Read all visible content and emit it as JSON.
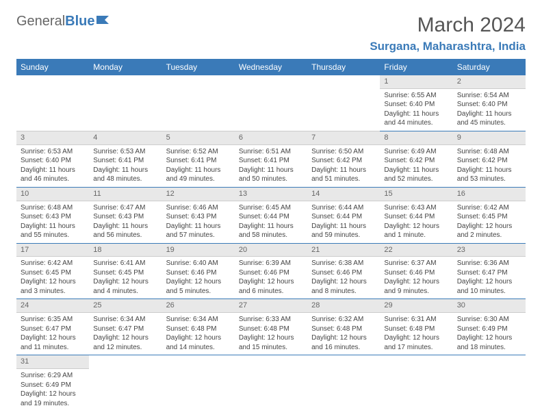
{
  "logo": {
    "general": "General",
    "blue": "Blue"
  },
  "title": "March 2024",
  "location": "Surgana, Maharashtra, India",
  "colors": {
    "header_bg": "#3a7ab8",
    "header_text": "#ffffff",
    "daynum_bg": "#e8e8e8",
    "row_border": "#3a7ab8",
    "text": "#444444"
  },
  "weekdays": [
    "Sunday",
    "Monday",
    "Tuesday",
    "Wednesday",
    "Thursday",
    "Friday",
    "Saturday"
  ],
  "weeks": [
    [
      {
        "blank": true
      },
      {
        "blank": true
      },
      {
        "blank": true
      },
      {
        "blank": true
      },
      {
        "blank": true
      },
      {
        "n": "1",
        "sunrise": "6:55 AM",
        "sunset": "6:40 PM",
        "daylight": "11 hours and 44 minutes."
      },
      {
        "n": "2",
        "sunrise": "6:54 AM",
        "sunset": "6:40 PM",
        "daylight": "11 hours and 45 minutes."
      }
    ],
    [
      {
        "n": "3",
        "sunrise": "6:53 AM",
        "sunset": "6:40 PM",
        "daylight": "11 hours and 46 minutes."
      },
      {
        "n": "4",
        "sunrise": "6:53 AM",
        "sunset": "6:41 PM",
        "daylight": "11 hours and 48 minutes."
      },
      {
        "n": "5",
        "sunrise": "6:52 AM",
        "sunset": "6:41 PM",
        "daylight": "11 hours and 49 minutes."
      },
      {
        "n": "6",
        "sunrise": "6:51 AM",
        "sunset": "6:41 PM",
        "daylight": "11 hours and 50 minutes."
      },
      {
        "n": "7",
        "sunrise": "6:50 AM",
        "sunset": "6:42 PM",
        "daylight": "11 hours and 51 minutes."
      },
      {
        "n": "8",
        "sunrise": "6:49 AM",
        "sunset": "6:42 PM",
        "daylight": "11 hours and 52 minutes."
      },
      {
        "n": "9",
        "sunrise": "6:48 AM",
        "sunset": "6:42 PM",
        "daylight": "11 hours and 53 minutes."
      }
    ],
    [
      {
        "n": "10",
        "sunrise": "6:48 AM",
        "sunset": "6:43 PM",
        "daylight": "11 hours and 55 minutes."
      },
      {
        "n": "11",
        "sunrise": "6:47 AM",
        "sunset": "6:43 PM",
        "daylight": "11 hours and 56 minutes."
      },
      {
        "n": "12",
        "sunrise": "6:46 AM",
        "sunset": "6:43 PM",
        "daylight": "11 hours and 57 minutes."
      },
      {
        "n": "13",
        "sunrise": "6:45 AM",
        "sunset": "6:44 PM",
        "daylight": "11 hours and 58 minutes."
      },
      {
        "n": "14",
        "sunrise": "6:44 AM",
        "sunset": "6:44 PM",
        "daylight": "11 hours and 59 minutes."
      },
      {
        "n": "15",
        "sunrise": "6:43 AM",
        "sunset": "6:44 PM",
        "daylight": "12 hours and 1 minute."
      },
      {
        "n": "16",
        "sunrise": "6:42 AM",
        "sunset": "6:45 PM",
        "daylight": "12 hours and 2 minutes."
      }
    ],
    [
      {
        "n": "17",
        "sunrise": "6:42 AM",
        "sunset": "6:45 PM",
        "daylight": "12 hours and 3 minutes."
      },
      {
        "n": "18",
        "sunrise": "6:41 AM",
        "sunset": "6:45 PM",
        "daylight": "12 hours and 4 minutes."
      },
      {
        "n": "19",
        "sunrise": "6:40 AM",
        "sunset": "6:46 PM",
        "daylight": "12 hours and 5 minutes."
      },
      {
        "n": "20",
        "sunrise": "6:39 AM",
        "sunset": "6:46 PM",
        "daylight": "12 hours and 6 minutes."
      },
      {
        "n": "21",
        "sunrise": "6:38 AM",
        "sunset": "6:46 PM",
        "daylight": "12 hours and 8 minutes."
      },
      {
        "n": "22",
        "sunrise": "6:37 AM",
        "sunset": "6:46 PM",
        "daylight": "12 hours and 9 minutes."
      },
      {
        "n": "23",
        "sunrise": "6:36 AM",
        "sunset": "6:47 PM",
        "daylight": "12 hours and 10 minutes."
      }
    ],
    [
      {
        "n": "24",
        "sunrise": "6:35 AM",
        "sunset": "6:47 PM",
        "daylight": "12 hours and 11 minutes."
      },
      {
        "n": "25",
        "sunrise": "6:34 AM",
        "sunset": "6:47 PM",
        "daylight": "12 hours and 12 minutes."
      },
      {
        "n": "26",
        "sunrise": "6:34 AM",
        "sunset": "6:48 PM",
        "daylight": "12 hours and 14 minutes."
      },
      {
        "n": "27",
        "sunrise": "6:33 AM",
        "sunset": "6:48 PM",
        "daylight": "12 hours and 15 minutes."
      },
      {
        "n": "28",
        "sunrise": "6:32 AM",
        "sunset": "6:48 PM",
        "daylight": "12 hours and 16 minutes."
      },
      {
        "n": "29",
        "sunrise": "6:31 AM",
        "sunset": "6:48 PM",
        "daylight": "12 hours and 17 minutes."
      },
      {
        "n": "30",
        "sunrise": "6:30 AM",
        "sunset": "6:49 PM",
        "daylight": "12 hours and 18 minutes."
      }
    ],
    [
      {
        "n": "31",
        "sunrise": "6:29 AM",
        "sunset": "6:49 PM",
        "daylight": "12 hours and 19 minutes."
      },
      {
        "blank": true
      },
      {
        "blank": true
      },
      {
        "blank": true
      },
      {
        "blank": true
      },
      {
        "blank": true
      },
      {
        "blank": true
      }
    ]
  ]
}
